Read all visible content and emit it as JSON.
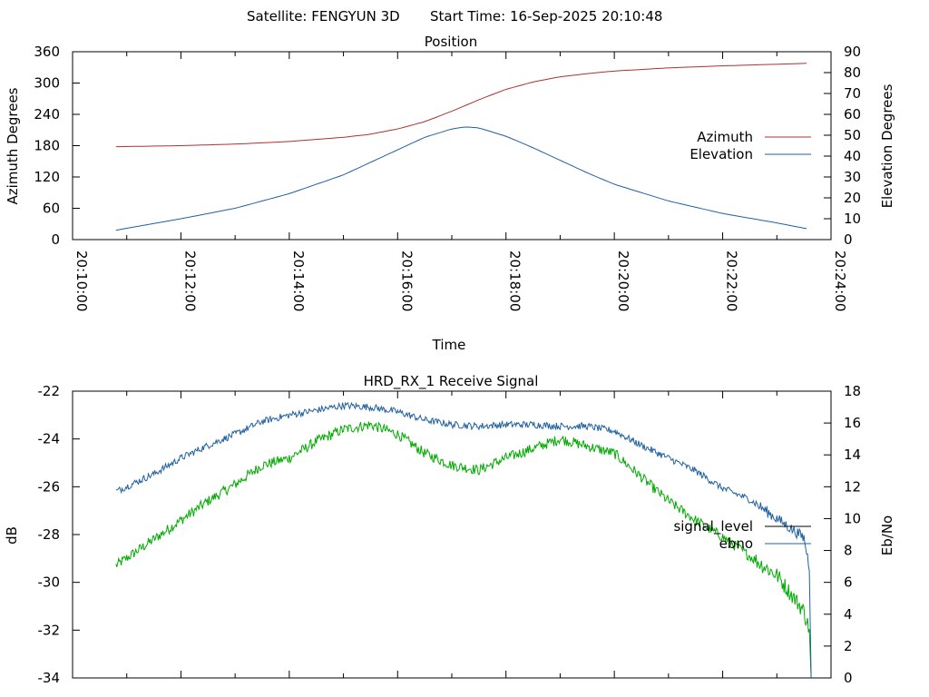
{
  "header": {
    "satellite": "Satellite: FENGYUN 3D",
    "start_time": "Start Time: 16-Sep-2025 20:10:48"
  },
  "colors": {
    "azimuth": "#b03030",
    "elevation": "#2060a0",
    "signal_level": "#00aa00",
    "ebno": "#2060a0",
    "legend_signal_swatch": "#000000",
    "axis": "#000000"
  },
  "chart_data": [
    {
      "type": "line",
      "title": "Position",
      "xlabel": "Time",
      "ylabel": "Azimuth Degrees",
      "y2label": "Elevation Degrees",
      "xlim": [
        "20:10:00",
        "20:24:00"
      ],
      "xticks": [
        "20:10:00",
        "20:12:00",
        "20:14:00",
        "20:16:00",
        "20:18:00",
        "20:20:00",
        "20:22:00",
        "20:24:00"
      ],
      "ylim": [
        0,
        360
      ],
      "yticks": [
        "0",
        "60",
        "120",
        "180",
        "240",
        "300",
        "360"
      ],
      "y2lim": [
        0,
        90
      ],
      "y2ticks": [
        "0",
        "10",
        "20",
        "30",
        "40",
        "50",
        "60",
        "70",
        "80",
        "90"
      ],
      "legend_position": "right",
      "series": [
        {
          "name": "Azimuth",
          "axis": "y",
          "x": [
            "20:10:48",
            "20:12:00",
            "20:13:00",
            "20:14:00",
            "20:15:00",
            "20:15:30",
            "20:16:00",
            "20:16:30",
            "20:17:00",
            "20:17:30",
            "20:18:00",
            "20:18:30",
            "20:19:00",
            "20:19:30",
            "20:20:00",
            "20:21:00",
            "20:22:00",
            "20:23:00",
            "20:23:36"
          ],
          "values": [
            178,
            180,
            183,
            188,
            196,
            202,
            212,
            226,
            246,
            268,
            288,
            302,
            312,
            318,
            323,
            329,
            333,
            336,
            338
          ]
        },
        {
          "name": "Elevation",
          "axis": "y2",
          "x": [
            "20:10:48",
            "20:12:00",
            "20:13:00",
            "20:14:00",
            "20:15:00",
            "20:15:30",
            "20:16:00",
            "20:16:30",
            "20:17:00",
            "20:17:15",
            "20:17:30",
            "20:18:00",
            "20:18:30",
            "20:19:00",
            "20:19:30",
            "20:20:00",
            "20:21:00",
            "20:22:00",
            "20:23:00",
            "20:23:36"
          ],
          "values": [
            4.5,
            10,
            15,
            22,
            31,
            37,
            43,
            49,
            53,
            54,
            53.5,
            49.5,
            44,
            38,
            32,
            26.5,
            18.5,
            12.5,
            8,
            5
          ]
        }
      ]
    },
    {
      "type": "line",
      "title": "HRD_RX_1 Receive Signal",
      "ylabel": "dB",
      "y2label": "Eb/No",
      "ylim": [
        -34,
        -22
      ],
      "yticks": [
        "-34",
        "-32",
        "-30",
        "-28",
        "-26",
        "-24",
        "-22"
      ],
      "y2lim": [
        0,
        18
      ],
      "y2ticks": [
        "0",
        "2",
        "4",
        "6",
        "8",
        "10",
        "12",
        "14",
        "16",
        "18"
      ],
      "xlim": [
        "20:10:00",
        "20:24:00"
      ],
      "legend_position": "right",
      "series": [
        {
          "name": "signal_level",
          "axis": "y",
          "x": [
            "20:10:48",
            "20:11:30",
            "20:12:00",
            "20:12:30",
            "20:13:00",
            "20:13:30",
            "20:14:00",
            "20:14:30",
            "20:15:00",
            "20:15:30",
            "20:16:00",
            "20:16:30",
            "20:17:00",
            "20:17:30",
            "20:18:00",
            "20:18:30",
            "20:19:00",
            "20:19:30",
            "20:20:00",
            "20:20:30",
            "20:21:00",
            "20:21:30",
            "20:22:00",
            "20:22:30",
            "20:23:00",
            "20:23:30",
            "20:23:36"
          ],
          "values": [
            -29.3,
            -28.2,
            -27.4,
            -26.6,
            -25.9,
            -25.1,
            -24.8,
            -24.1,
            -23.6,
            -23.4,
            -23.8,
            -24.6,
            -25.1,
            -25.3,
            -24.8,
            -24.4,
            -24.0,
            -24.3,
            -24.6,
            -25.6,
            -26.6,
            -27.4,
            -28.1,
            -28.9,
            -29.7,
            -31.2,
            -32.0
          ]
        },
        {
          "name": "ebno",
          "axis": "y2",
          "x": [
            "20:10:48",
            "20:11:30",
            "20:12:00",
            "20:12:30",
            "20:13:00",
            "20:13:30",
            "20:14:00",
            "20:14:30",
            "20:15:00",
            "20:15:30",
            "20:16:00",
            "20:16:30",
            "20:17:00",
            "20:17:30",
            "20:18:00",
            "20:18:30",
            "20:19:00",
            "20:19:30",
            "20:20:00",
            "20:20:30",
            "20:21:00",
            "20:21:30",
            "20:22:00",
            "20:22:30",
            "20:23:00",
            "20:23:30",
            "20:23:36"
          ],
          "values": [
            11.7,
            12.8,
            13.8,
            14.6,
            15.3,
            16.1,
            16.5,
            16.8,
            17.1,
            17.0,
            16.7,
            16.2,
            15.9,
            15.8,
            15.9,
            15.9,
            15.8,
            15.8,
            15.5,
            14.6,
            13.8,
            13.0,
            11.9,
            11.2,
            10.0,
            8.8,
            7.0
          ]
        }
      ]
    }
  ]
}
